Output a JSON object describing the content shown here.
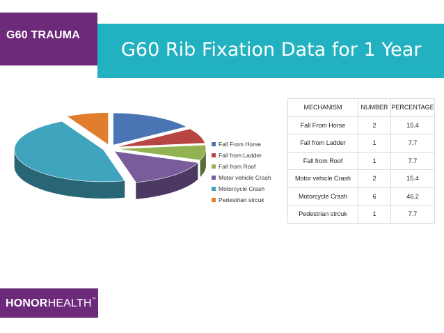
{
  "brand": {
    "label": "G60 TRAUMA",
    "color": "#6e2a7a"
  },
  "header": {
    "title": "G60 Rib Fixation Data for 1 Year",
    "color": "#22b1c0"
  },
  "chart_data": {
    "type": "pie",
    "title": "",
    "categories": [
      "Fall From Horse",
      "Fall from Ladder",
      "Fall from Roof",
      "Motor vehicle Crash",
      "Motorcycle Crash",
      "Pedestrian strcuk"
    ],
    "values": [
      2,
      1,
      1,
      2,
      6,
      1
    ],
    "colors": [
      "#4a74b4",
      "#b74643",
      "#93b352",
      "#7a5c9c",
      "#40a4be",
      "#e07e2e"
    ],
    "legend_position": "right",
    "exploded": true,
    "three_d": true
  },
  "table": {
    "headers": [
      "MECHANISM",
      "NUMBER",
      "PERCENTAGE"
    ],
    "rows": [
      [
        "Fall From Horse",
        "2",
        "15.4"
      ],
      [
        "Fall from Ladder",
        "1",
        "7.7"
      ],
      [
        "Fall from Roof",
        "1",
        "7.7"
      ],
      [
        "Motor vehicle Crash",
        "2",
        "15.4"
      ],
      [
        "Motorcycle Crash",
        "6",
        "46.2"
      ],
      [
        "Pedestrian strcuk",
        "1",
        "7.7"
      ]
    ]
  },
  "footer": {
    "logo_bold": "HONOR",
    "logo_rest": "HEALTH",
    "logo_mark": "™"
  }
}
